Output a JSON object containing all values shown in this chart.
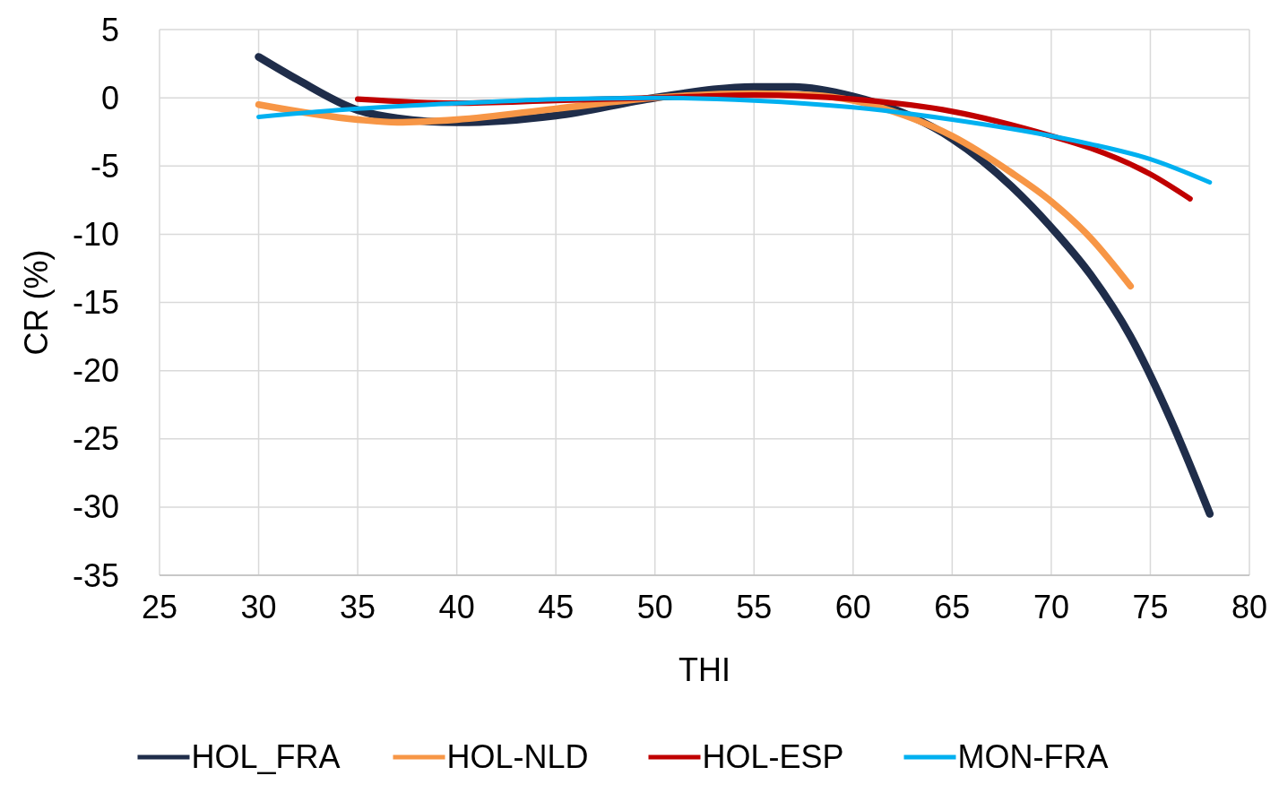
{
  "chart_data": {
    "type": "line",
    "xlabel": "THI",
    "ylabel": "CR (%)",
    "xlim": [
      25,
      80
    ],
    "xticks": [
      25,
      30,
      35,
      40,
      45,
      50,
      55,
      60,
      65,
      70,
      75,
      80
    ],
    "ylim": [
      -35,
      5
    ],
    "yticks": [
      -35,
      -30,
      -25,
      -20,
      -15,
      -10,
      -5,
      0,
      5
    ],
    "grid": true,
    "legend": "bottom",
    "marker": "none",
    "line_style": "solid",
    "series": [
      {
        "name": "HOL_FRA",
        "color": "#1f2d4a",
        "x": [
          30,
          32,
          35,
          37,
          40,
          45,
          50,
          55,
          57,
          60,
          62,
          65,
          68,
          70,
          72,
          74,
          76,
          78
        ],
        "values": [
          3.0,
          1.3,
          -0.9,
          -1.5,
          -1.8,
          -1.3,
          0,
          0.8,
          0.8,
          0.1,
          -0.8,
          -3,
          -6.5,
          -9.5,
          -13,
          -17.5,
          -23.5,
          -30.5
        ]
      },
      {
        "name": "HOL-NLD",
        "color": "#f79646",
        "x": [
          30,
          35,
          37,
          40,
          45,
          50,
          55,
          58,
          60,
          62,
          65,
          68,
          70,
          72,
          74
        ],
        "values": [
          -0.5,
          -1.6,
          -1.8,
          -1.6,
          -0.8,
          0,
          0.3,
          0.2,
          -0.2,
          -1.0,
          -2.8,
          -5.5,
          -7.6,
          -10.3,
          -13.8
        ]
      },
      {
        "name": "HOL-ESP",
        "color": "#c00000",
        "x": [
          35,
          40,
          45,
          50,
          55,
          60,
          65,
          70,
          72,
          75,
          77
        ],
        "values": [
          -0.1,
          -0.4,
          -0.2,
          0,
          0.2,
          -0.1,
          -1,
          -2.8,
          -3.7,
          -5.6,
          -7.4
        ]
      },
      {
        "name": "MON-FRA",
        "color": "#00b0f0",
        "x": [
          30,
          35,
          40,
          45,
          50,
          55,
          60,
          65,
          70,
          72,
          75,
          78
        ],
        "values": [
          -1.4,
          -0.8,
          -0.4,
          -0.1,
          0,
          -0.2,
          -0.7,
          -1.6,
          -2.8,
          -3.4,
          -4.5,
          -6.2
        ]
      }
    ]
  }
}
